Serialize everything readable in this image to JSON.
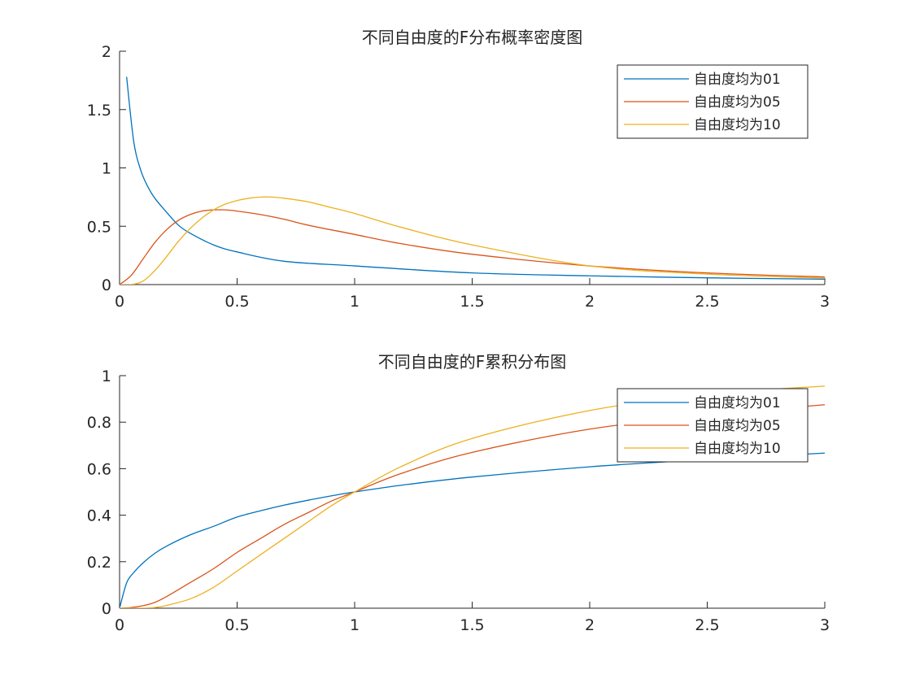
{
  "chart_data": [
    {
      "type": "line",
      "title": "不同自由度的F分布概率密度图",
      "xlabel": "",
      "ylabel": "",
      "xlim": [
        0,
        3
      ],
      "ylim": [
        0,
        2
      ],
      "xticks": [
        "0",
        "0.5",
        "1",
        "1.5",
        "2",
        "2.5",
        "3"
      ],
      "yticks": [
        "0",
        "0.5",
        "1",
        "1.5",
        "2"
      ],
      "grid": false,
      "legend_position": "top-right",
      "series": [
        {
          "name": "自由度均为01",
          "color": "#0072BD",
          "x": [
            0.03,
            0.06,
            0.09,
            0.12,
            0.15,
            0.2,
            0.25,
            0.3,
            0.4,
            0.5,
            0.7,
            1.0,
            1.5,
            2.0,
            2.5,
            3.0
          ],
          "y": [
            1.78,
            1.23,
            0.98,
            0.84,
            0.74,
            0.62,
            0.51,
            0.44,
            0.34,
            0.28,
            0.2,
            0.16,
            0.1,
            0.075,
            0.058,
            0.046
          ]
        },
        {
          "name": "自由度均为05",
          "color": "#D95319",
          "x": [
            0,
            0.05,
            0.1,
            0.15,
            0.2,
            0.25,
            0.3,
            0.35,
            0.4,
            0.45,
            0.5,
            0.6,
            0.7,
            0.8,
            1.0,
            1.2,
            1.5,
            2.0,
            2.5,
            3.0
          ],
          "y": [
            0,
            0.08,
            0.22,
            0.36,
            0.47,
            0.55,
            0.6,
            0.63,
            0.64,
            0.64,
            0.63,
            0.6,
            0.56,
            0.51,
            0.43,
            0.35,
            0.26,
            0.16,
            0.1,
            0.065
          ]
        },
        {
          "name": "自由度均为10",
          "color": "#EDB120",
          "x": [
            0,
            0.05,
            0.1,
            0.15,
            0.2,
            0.25,
            0.3,
            0.35,
            0.4,
            0.45,
            0.5,
            0.55,
            0.6,
            0.65,
            0.7,
            0.8,
            0.9,
            1.0,
            1.2,
            1.5,
            2.0,
            2.5,
            3.0
          ],
          "y": [
            0,
            0.0,
            0.03,
            0.12,
            0.24,
            0.37,
            0.48,
            0.57,
            0.64,
            0.69,
            0.72,
            0.74,
            0.75,
            0.75,
            0.74,
            0.71,
            0.66,
            0.61,
            0.49,
            0.34,
            0.16,
            0.09,
            0.055
          ]
        }
      ]
    },
    {
      "type": "line",
      "title": "不同自由度的F累积分布图",
      "xlabel": "",
      "ylabel": "",
      "xlim": [
        0,
        3
      ],
      "ylim": [
        0,
        1
      ],
      "xticks": [
        "0",
        "0.5",
        "1",
        "1.5",
        "2",
        "2.5",
        "3"
      ],
      "yticks": [
        "0",
        "0.2",
        "0.4",
        "0.6",
        "0.8",
        "1"
      ],
      "grid": false,
      "legend_position": "top-right",
      "series": [
        {
          "name": "自由度均为01",
          "color": "#0072BD",
          "x": [
            0,
            0.03,
            0.06,
            0.1,
            0.15,
            0.2,
            0.3,
            0.4,
            0.5,
            0.6,
            0.7,
            0.8,
            0.9,
            1.0,
            1.2,
            1.5,
            2.0,
            2.5,
            3.0
          ],
          "y": [
            0,
            0.109,
            0.153,
            0.195,
            0.236,
            0.267,
            0.315,
            0.352,
            0.392,
            0.419,
            0.443,
            0.464,
            0.483,
            0.5,
            0.529,
            0.564,
            0.608,
            0.64,
            0.667
          ]
        },
        {
          "name": "自由度均为05",
          "color": "#D95319",
          "x": [
            0,
            0.05,
            0.1,
            0.15,
            0.2,
            0.3,
            0.4,
            0.5,
            0.6,
            0.7,
            0.8,
            0.9,
            1.0,
            1.2,
            1.5,
            2.0,
            2.5,
            3.0
          ],
          "y": [
            0,
            0.003,
            0.011,
            0.025,
            0.05,
            0.11,
            0.17,
            0.24,
            0.3,
            0.36,
            0.41,
            0.46,
            0.5,
            0.58,
            0.67,
            0.77,
            0.83,
            0.875
          ]
        },
        {
          "name": "自由度均为10",
          "color": "#EDB120",
          "x": [
            0,
            0.05,
            0.1,
            0.15,
            0.2,
            0.3,
            0.4,
            0.5,
            0.6,
            0.7,
            0.8,
            0.9,
            1.0,
            1.2,
            1.5,
            2.0,
            2.5,
            3.0
          ],
          "y": [
            0,
            0.0,
            0.0,
            0.003,
            0.012,
            0.04,
            0.09,
            0.16,
            0.23,
            0.3,
            0.37,
            0.44,
            0.5,
            0.61,
            0.73,
            0.85,
            0.92,
            0.955
          ]
        }
      ]
    }
  ]
}
